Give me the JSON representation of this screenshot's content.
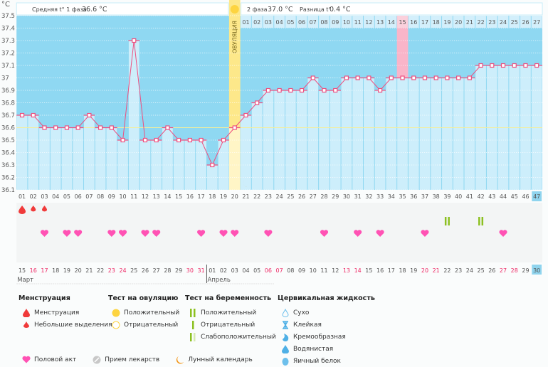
{
  "header": {
    "unit": "°C",
    "phase1_label": "Средняя t° 1 фаза",
    "phase1_value": "36.6 °C",
    "phase2_label": "2 фаза",
    "phase2_value": "37.0 °C",
    "diff_label": "Разница t°",
    "diff_value": "0.4 °C",
    "ovulation_label": "ОВУЛЯЦИЯ"
  },
  "chart_data": {
    "type": "line",
    "ylabel": "°C",
    "ylim": [
      36.1,
      37.5
    ],
    "yticks": [
      "37.5",
      "37.4",
      "37.3",
      "37.2",
      "37.1",
      "37",
      "36.9",
      "36.8",
      "36.7",
      "36.6",
      "36.5",
      "36.4",
      "36.3",
      "36.2",
      "36.1"
    ],
    "coverline": 36.6,
    "ovulation_day": 20,
    "highlight_day": 35,
    "current_day": 47,
    "days": [
      1,
      2,
      3,
      4,
      5,
      6,
      7,
      8,
      9,
      10,
      11,
      12,
      13,
      14,
      15,
      16,
      17,
      18,
      19,
      20,
      21,
      22,
      23,
      24,
      25,
      26,
      27,
      28,
      29,
      30,
      31,
      32,
      33,
      34,
      35,
      36,
      37,
      38,
      39,
      40,
      41,
      42,
      43,
      44,
      45,
      46,
      47
    ],
    "temps": [
      36.7,
      36.7,
      36.6,
      36.6,
      36.6,
      36.6,
      36.7,
      36.6,
      36.6,
      36.5,
      37.3,
      36.5,
      36.5,
      36.6,
      36.5,
      36.5,
      36.5,
      36.3,
      36.5,
      36.6,
      36.7,
      36.8,
      36.9,
      36.9,
      36.9,
      36.9,
      37.0,
      36.9,
      36.9,
      37.0,
      37.0,
      37.0,
      36.9,
      37.0,
      37.0,
      37.0,
      37.0,
      37.0,
      37.0,
      37.0,
      37.0,
      37.1,
      37.1,
      37.1,
      37.1,
      37.1,
      37.1
    ],
    "phase2_start_day": 21,
    "dates": [
      "15",
      "16",
      "17",
      "18",
      "19",
      "20",
      "21",
      "22",
      "23",
      "24",
      "25",
      "26",
      "27",
      "28",
      "29",
      "30",
      "31",
      "01",
      "02",
      "03",
      "04",
      "05",
      "06",
      "07",
      "08",
      "09",
      "10",
      "11",
      "12",
      "13",
      "14",
      "15",
      "16",
      "17",
      "18",
      "19",
      "20",
      "21",
      "22",
      "23",
      "24",
      "25",
      "26",
      "27",
      "28",
      "29",
      "30"
    ],
    "weekend_days": [
      2,
      3,
      9,
      10,
      16,
      17,
      23,
      24,
      30,
      31,
      37,
      38,
      44,
      45
    ],
    "months": [
      {
        "label": "Март",
        "start_day": 1
      },
      {
        "label": "Апрель",
        "start_day": 18
      }
    ],
    "menstruation": [
      {
        "day": 1,
        "kind": "heavy"
      },
      {
        "day": 2,
        "kind": "light"
      },
      {
        "day": 3,
        "kind": "light"
      }
    ],
    "pregnancy_tests": [
      39,
      42
    ],
    "intercourse": [
      3,
      5,
      6,
      9,
      10,
      12,
      13,
      17,
      19,
      20,
      23,
      28,
      31,
      33,
      37,
      44
    ],
    "moon_day": 21
  },
  "legend": {
    "menstruation": {
      "title": "Менструация",
      "items": [
        "Менструация",
        "Небольшие выделения"
      ]
    },
    "ovulation_test": {
      "title": "Тест на овуляцию",
      "items": [
        "Положительный",
        "Отрицательный"
      ]
    },
    "pregnancy_test": {
      "title": "Тест на беременность",
      "items": [
        "Положительный",
        "Отрицательный",
        "Слабоположительный"
      ]
    },
    "cervical": {
      "title": "Цервикальная жидкость",
      "items": [
        "Сухо",
        "Клейкая",
        "Кремообразная",
        "Водянистая",
        "Яичный белок"
      ]
    },
    "other": [
      "Половой акт",
      "Прием лекарств",
      "Лунный календарь"
    ]
  },
  "colors": {
    "above": "#8fd8f2",
    "below": "#cdeefb",
    "line": "#ee4f7f",
    "ovulation": "#fde88a",
    "highlight": "#f9b5c9",
    "heart": "#ff52b4",
    "drop": "#f03a3a",
    "test": "#8cc020",
    "moon": "#f3920e"
  }
}
